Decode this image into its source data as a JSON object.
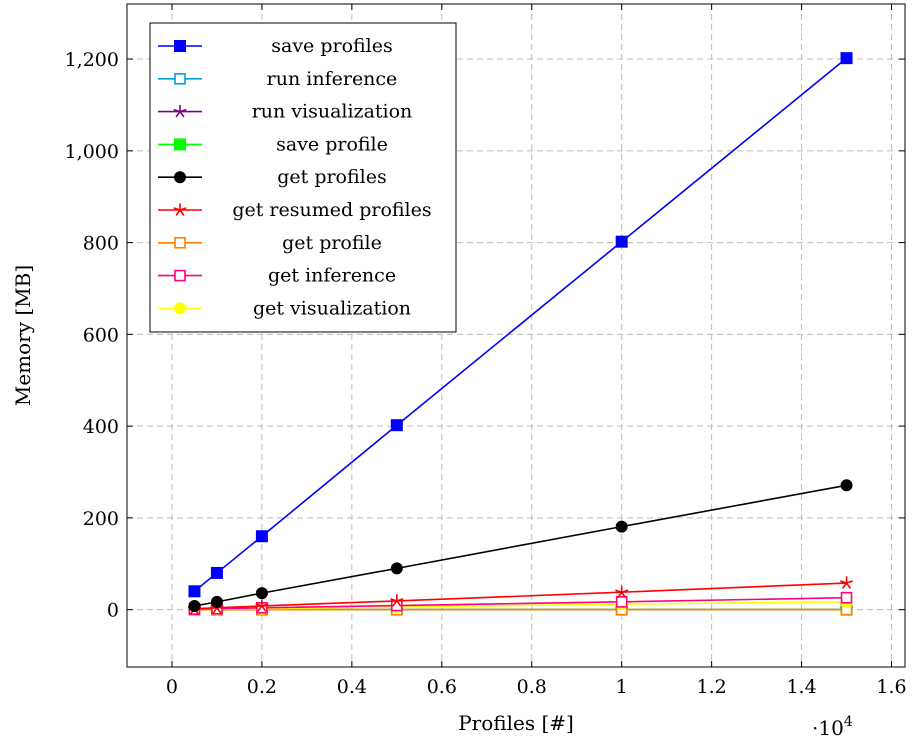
{
  "chart_data": {
    "type": "line",
    "xlabel": "Profiles [#]",
    "ylabel": "Memory [MB]",
    "x_scale_label": "·10",
    "x_scale_exponent": "4",
    "xlim": [
      -0.1,
      1.63
    ],
    "ylim": [
      -125,
      1320
    ],
    "x_ticks": [
      0,
      0.2,
      0.4,
      0.6,
      0.8,
      1,
      1.2,
      1.4,
      1.6
    ],
    "x_tick_labels": [
      "0",
      "0.2",
      "0.4",
      "0.6",
      "0.8",
      "1",
      "1.2",
      "1.4",
      "1.6"
    ],
    "y_ticks": [
      0,
      200,
      400,
      600,
      800,
      1000,
      1200
    ],
    "y_tick_labels": [
      "0",
      "200",
      "400",
      "600",
      "800",
      "1,000",
      "1,200"
    ],
    "grid": true,
    "legend_position": "top-left",
    "x": [
      0.05,
      0.1,
      0.2,
      0.5,
      1,
      1.5
    ],
    "series": [
      {
        "name": "save profiles",
        "color": "#0000ff",
        "marker": "square-filled",
        "values": [
          40,
          80,
          160,
          402,
          802,
          1202
        ]
      },
      {
        "name": "run inference",
        "color": "#00a0e0",
        "marker": "square-open",
        "values": [
          0,
          0,
          0,
          0,
          0,
          0
        ]
      },
      {
        "name": "run visualization",
        "color": "#800080",
        "marker": "star",
        "values": [
          0,
          0,
          0,
          0,
          0,
          0
        ]
      },
      {
        "name": "save profile",
        "color": "#00ff00",
        "marker": "square-filled",
        "values": [
          0,
          0,
          0,
          0,
          0,
          0
        ]
      },
      {
        "name": "get profiles",
        "color": "#000000",
        "marker": "circle-filled",
        "values": [
          8,
          17,
          36,
          90,
          181,
          271
        ]
      },
      {
        "name": "get resumed profiles",
        "color": "#ff0000",
        "marker": "star",
        "values": [
          2,
          4,
          8,
          19,
          38,
          58
        ]
      },
      {
        "name": "get profile",
        "color": "#ff8000",
        "marker": "square-open",
        "values": [
          0,
          0,
          0,
          0,
          0,
          0
        ]
      },
      {
        "name": "get inference",
        "color": "#ff0080",
        "marker": "square-open",
        "values": [
          1,
          2,
          4,
          9,
          17,
          26
        ]
      },
      {
        "name": "get visualization",
        "color": "#ffff00",
        "marker": "circle-filled",
        "values": [
          1,
          1,
          2,
          6,
          12,
          17
        ]
      }
    ]
  }
}
